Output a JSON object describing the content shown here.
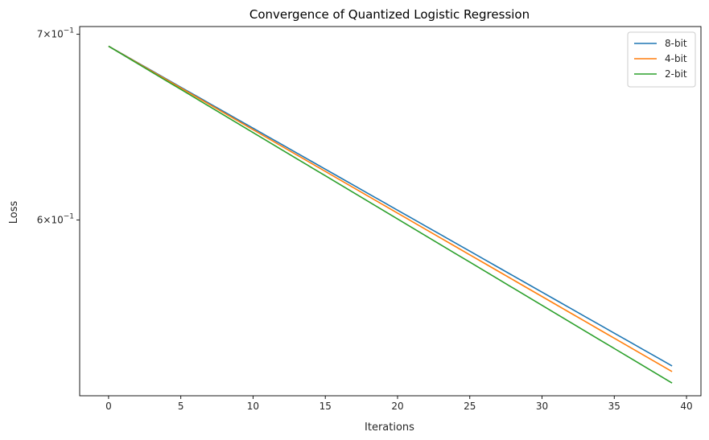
{
  "chart_data": {
    "type": "line",
    "title": "Convergence of Quantized Logistic Regression",
    "xlabel": "Iterations",
    "ylabel": "Loss",
    "yscale": "log",
    "xlim": [
      -2,
      41
    ],
    "ylim": [
      0.5185,
      0.7045
    ],
    "x_ticks": [
      0,
      5,
      10,
      15,
      20,
      25,
      30,
      35,
      40
    ],
    "y_ticks": [
      {
        "value": 0.7,
        "label_base": "7",
        "label_tail": "×10",
        "label_exp": "−1"
      },
      {
        "value": 0.6,
        "label_base": "6",
        "label_tail": "×10",
        "label_exp": "−1"
      }
    ],
    "grid": false,
    "legend_position": "top-right",
    "x": [
      0,
      1,
      2,
      3,
      4,
      5,
      6,
      7,
      8,
      9,
      10,
      11,
      12,
      13,
      14,
      15,
      16,
      17,
      18,
      19,
      20,
      21,
      22,
      23,
      24,
      25,
      26,
      27,
      28,
      29,
      30,
      31,
      32,
      33,
      34,
      35,
      36,
      37,
      38,
      39
    ],
    "series": [
      {
        "name": "8-bit",
        "color": "#1f77b4",
        "start": 0.6931,
        "end": 0.5315
      },
      {
        "name": "4-bit",
        "color": "#ff7f0e",
        "start": 0.6931,
        "end": 0.529
      },
      {
        "name": "2-bit",
        "color": "#2ca02c",
        "start": 0.6931,
        "end": 0.524
      }
    ]
  }
}
